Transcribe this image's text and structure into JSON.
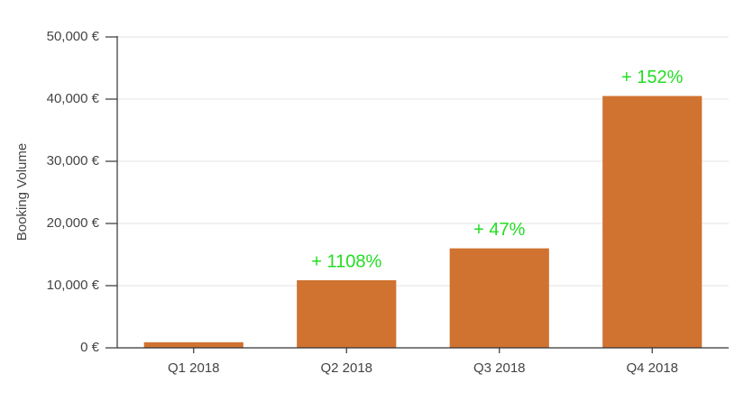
{
  "chart_data": {
    "type": "bar",
    "y_label": "Booking Volume",
    "categories": [
      "Q1 2018",
      "Q2 2018",
      "Q3 2018",
      "Q4 2018"
    ],
    "values": [
      900,
      10870,
      16000,
      40500
    ],
    "color": "#d07230",
    "growth_labels": [
      null,
      "+ 1108%",
      "+ 47%",
      "+ 152%"
    ],
    "growth_color": "#22dd22",
    "ylim": [
      0,
      50000
    ],
    "yticks": [
      {
        "value": 0,
        "label": "0 €"
      },
      {
        "value": 10000,
        "label": "10,000 €"
      },
      {
        "value": 20000,
        "label": "20,000 €"
      },
      {
        "value": 30000,
        "label": "30,000 €"
      },
      {
        "value": 40000,
        "label": "40,000 €"
      },
      {
        "value": 50000,
        "label": "50,000 €"
      }
    ],
    "grid": true
  }
}
